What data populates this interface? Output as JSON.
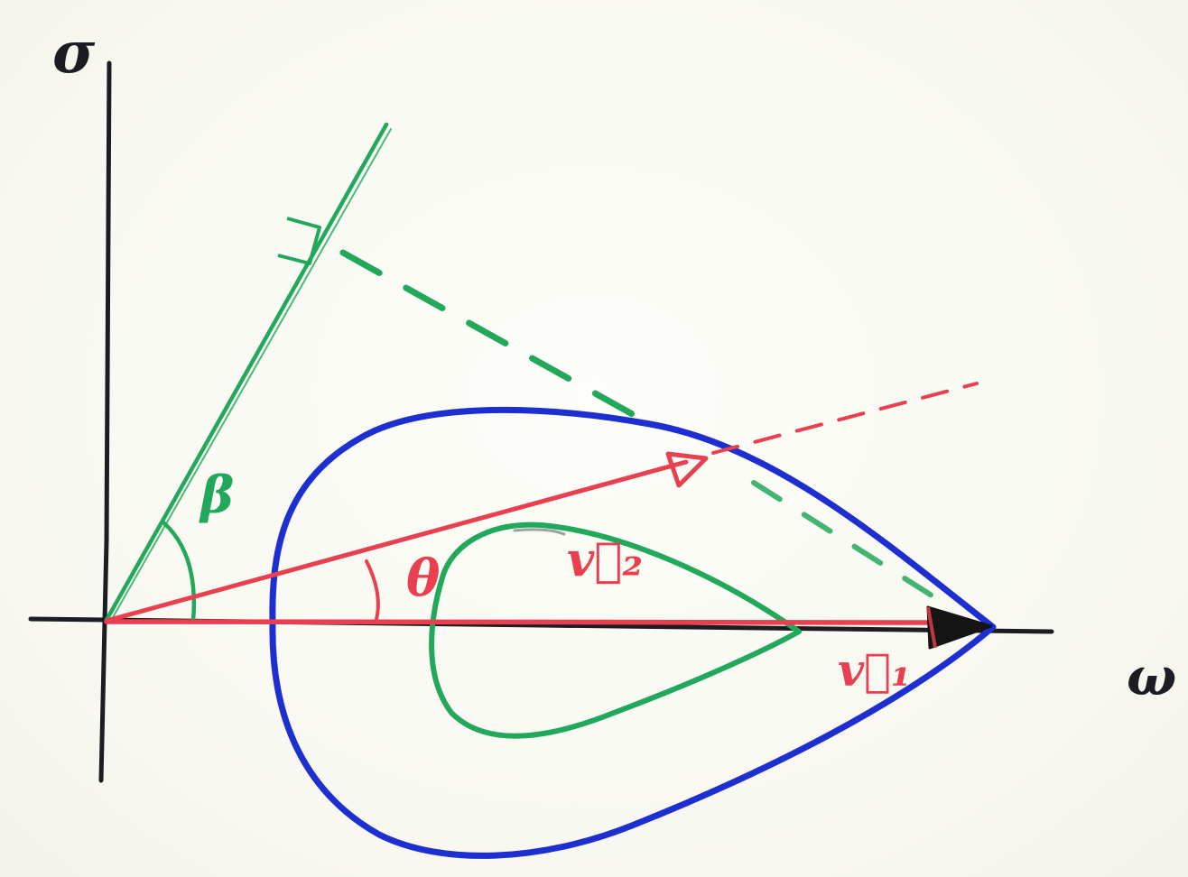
{
  "labels": {
    "y_axis": "σ",
    "x_axis": "ω",
    "angle_beta": "β",
    "angle_theta": "θ",
    "vector_2": "v⃗₂",
    "vector_1": "v⃗₁"
  },
  "colors": {
    "ink": "#1c1c22",
    "green": "#21a85a",
    "red": "#e8404f",
    "blue": "#1d2fd0",
    "arrowhead": "#151515",
    "paper": "#fbfbf6"
  }
}
